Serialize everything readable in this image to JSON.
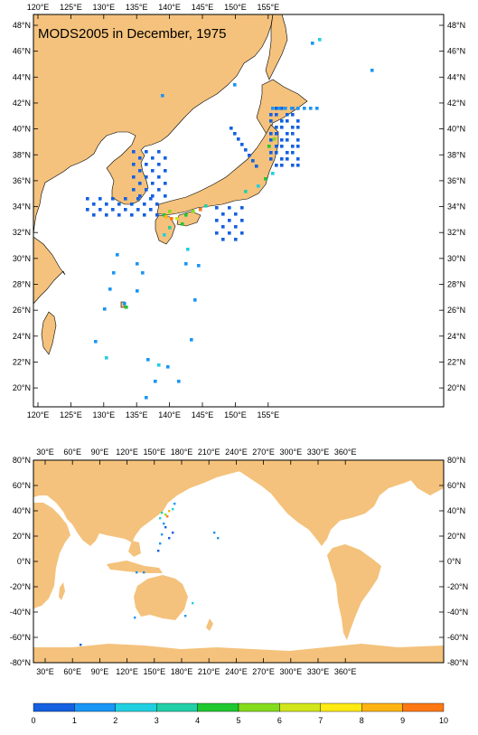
{
  "map_top": {
    "title": "MODS2005 in December, 1975",
    "lon_labels": [
      "120°E",
      "125°E",
      "130°E",
      "135°E",
      "140°E",
      "145°E",
      "150°E",
      "155°E"
    ],
    "lat_labels": [
      "48°N",
      "46°N",
      "44°N",
      "42°N",
      "40°N",
      "38°N",
      "36°N",
      "34°N",
      "32°N",
      "30°N",
      "28°N",
      "26°N",
      "24°N",
      "22°N",
      "20°N"
    ],
    "extent": {
      "lon": [
        119.5,
        157
      ],
      "lat": [
        18.5,
        49.5
      ]
    }
  },
  "map_bottom": {
    "lon_labels": [
      "30°E",
      "60°E",
      "90°E",
      "120°E",
      "150°E",
      "180°E",
      "210°E",
      "240°E",
      "270°E",
      "300°E",
      "330°E",
      "360°E"
    ],
    "lat_labels": [
      "80°N",
      "60°N",
      "40°N",
      "20°N",
      "0°N",
      "-20°N",
      "-40°N",
      "-60°N",
      "-80°N"
    ],
    "extent": {
      "lon": [
        20,
        380
      ],
      "lat": [
        -80,
        80
      ]
    }
  },
  "colorbar": {
    "labels": [
      "0",
      "1",
      "2",
      "3",
      "4",
      "5",
      "6",
      "7",
      "8",
      "9",
      "10"
    ],
    "colors": [
      "#1560e0",
      "#1a96f5",
      "#20d0e0",
      "#20d0a8",
      "#20c830",
      "#84dc1c",
      "#d2e61c",
      "#ffea14",
      "#ffb414",
      "#ff7814"
    ]
  },
  "colors": {
    "land": "#f4c27c",
    "ocean": "#ffffff",
    "frame": "#000000"
  }
}
